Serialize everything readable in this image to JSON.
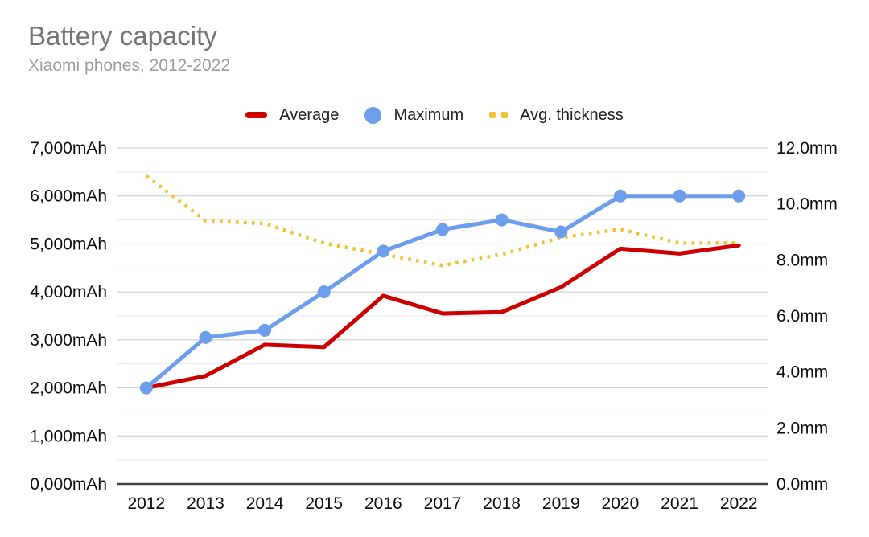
{
  "header": {
    "title": "Battery capacity",
    "subtitle": "Xiaomi phones, 2012-2022"
  },
  "legend": [
    {
      "label": "Average",
      "color": "#cc0000",
      "marker": "line-swatch"
    },
    {
      "label": "Maximum",
      "color": "#6d9eeb",
      "marker": "circle-swatch"
    },
    {
      "label": "Avg. thickness",
      "color": "#f1c232",
      "marker": "dotted-swatch"
    }
  ],
  "chart_data": {
    "type": "line",
    "title": "Battery capacity",
    "subtitle": "Xiaomi phones, 2012-2022",
    "legend_position": "top",
    "categories": [
      "2012",
      "2013",
      "2014",
      "2015",
      "2016",
      "2017",
      "2018",
      "2019",
      "2020",
      "2021",
      "2022"
    ],
    "series": [
      {
        "name": "Average",
        "axis": "left",
        "color": "#cc0000",
        "style": "solid",
        "markers": false,
        "values": [
          2000,
          2250,
          2900,
          2850,
          3920,
          3550,
          3580,
          4100,
          4900,
          4800,
          4970
        ]
      },
      {
        "name": "Maximum",
        "axis": "left",
        "color": "#6d9eeb",
        "style": "solid",
        "markers": true,
        "values": [
          2000,
          3050,
          3200,
          4000,
          4850,
          5300,
          5500,
          5250,
          6000,
          6000,
          6000
        ]
      },
      {
        "name": "Avg. thickness",
        "axis": "right",
        "color": "#f1c232",
        "style": "dotted",
        "markers": false,
        "values": [
          11.0,
          9.4,
          9.3,
          8.6,
          8.2,
          7.8,
          8.2,
          8.8,
          9.1,
          8.6,
          8.6
        ]
      }
    ],
    "left_axis": {
      "title": "",
      "min": 0,
      "max": 7000,
      "major_step": 1000,
      "minor_step": 500,
      "labels": [
        "0,000mAh",
        "1,000mAh",
        "2,000mAh",
        "3,000mAh",
        "4,000mAh",
        "5,000mAh",
        "6,000mAh",
        "7,000mAh"
      ]
    },
    "right_axis": {
      "title": "",
      "min": 0,
      "max": 12,
      "step": 2,
      "labels": [
        "0.0mm",
        "2.0mm",
        "4.0mm",
        "6.0mm",
        "8.0mm",
        "10.0mm",
        "12.0mm"
      ]
    },
    "grid": {
      "major_color": "#c9c9c9",
      "minor_color": "#e9e9e9",
      "axis_color": "#424242",
      "grid_on": true
    }
  }
}
